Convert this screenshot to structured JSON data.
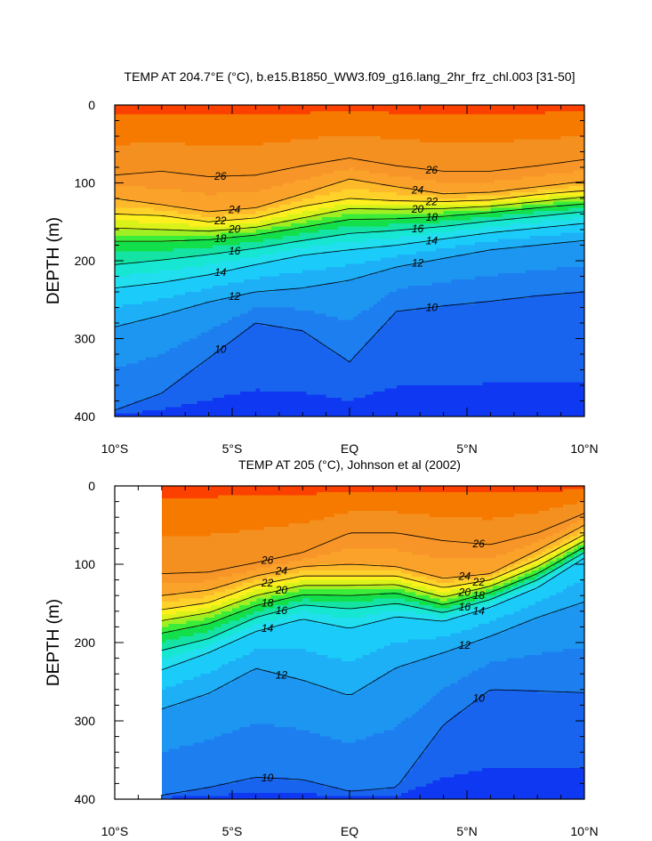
{
  "chart_data": [
    {
      "type": "contour",
      "title": "TEMP AT 204.7°E (°C), b.e15.B1850_WW3.f09_g16.lang_2hr_frz_chl.003 [31-50]",
      "xlabel": "",
      "ylabel": "DEPTH (m)",
      "x_ticks": [
        "10°S",
        "5°S",
        "EQ",
        "5°N",
        "10°N"
      ],
      "y_ticks": [
        "0",
        "100",
        "200",
        "300",
        "400"
      ],
      "xlim": [
        -10,
        10
      ],
      "ylim": [
        0,
        400
      ],
      "y_inverted": true,
      "contour_labels": [
        "26",
        "26",
        "24",
        "24",
        "22",
        "22",
        "20",
        "20",
        "18",
        "18",
        "16",
        "16",
        "14",
        "14",
        "12",
        "12",
        "10",
        "10",
        "24",
        "22",
        "20",
        "18",
        "16",
        "14",
        "12",
        "10",
        "10",
        "26"
      ],
      "isotherm_depths": {
        "x": [
          -10,
          -8,
          -6,
          -4,
          -2,
          0,
          2,
          4,
          6,
          8,
          10
        ],
        "26": [
          90,
          85,
          92,
          90,
          78,
          68,
          78,
          85,
          85,
          78,
          70
        ],
        "24": [
          120,
          128,
          137,
          132,
          114,
          95,
          105,
          114,
          112,
          105,
          98
        ],
        "22": [
          140,
          142,
          150,
          145,
          130,
          120,
          123,
          124,
          122,
          115,
          110
        ],
        "20": [
          158,
          160,
          162,
          157,
          145,
          133,
          134,
          133,
          130,
          124,
          118
        ],
        "18": [
          175,
          175,
          173,
          167,
          157,
          147,
          146,
          143,
          138,
          132,
          127
        ],
        "16": [
          205,
          199,
          192,
          184,
          174,
          165,
          161,
          156,
          149,
          143,
          137
        ],
        "14": [
          235,
          228,
          218,
          205,
          193,
          186,
          180,
          172,
          164,
          158,
          152
        ],
        "12": [
          285,
          270,
          253,
          240,
          235,
          225,
          208,
          197,
          186,
          180,
          174
        ],
        "10": [
          392,
          370,
          325,
          280,
          290,
          330,
          265,
          258,
          252,
          245,
          240
        ]
      }
    },
    {
      "type": "contour",
      "title": "TEMP AT 205 (°C), Johnson et al (2002)",
      "xlabel": "",
      "ylabel": "DEPTH (m)",
      "x_ticks": [
        "10°S",
        "5°S",
        "EQ",
        "5°N",
        "10°N"
      ],
      "y_ticks": [
        "0",
        "100",
        "200",
        "300",
        "400"
      ],
      "xlim": [
        -10,
        10
      ],
      "ylim": [
        0,
        400
      ],
      "y_inverted": true,
      "data_x_range": [
        -8,
        10
      ],
      "contour_labels": [
        "26",
        "26",
        "26",
        "24",
        "24",
        "22",
        "22",
        "20",
        "20",
        "18",
        "18",
        "16",
        "16",
        "14",
        "14",
        "14",
        "12",
        "12",
        "12",
        "10",
        "10",
        "10",
        "24",
        "22",
        "20",
        "18",
        "16"
      ],
      "isotherm_depths": {
        "x": [
          -8,
          -6,
          -4,
          -2,
          0,
          2,
          4,
          6,
          8,
          10
        ],
        "26": [
          112,
          110,
          98,
          85,
          60,
          60,
          70,
          75,
          60,
          35
        ],
        "24": [
          140,
          133,
          115,
          103,
          100,
          103,
          118,
          112,
          82,
          50
        ],
        "22": [
          158,
          149,
          127,
          115,
          115,
          115,
          130,
          120,
          94,
          62
        ],
        "20": [
          172,
          162,
          140,
          127,
          127,
          126,
          142,
          128,
          103,
          70
        ],
        "18": [
          188,
          176,
          153,
          139,
          140,
          137,
          152,
          136,
          112,
          78
        ],
        "16": [
          210,
          195,
          168,
          152,
          157,
          150,
          162,
          145,
          120,
          85
        ],
        "14": [
          235,
          213,
          186,
          170,
          182,
          167,
          173,
          155,
          130,
          92
        ],
        "12": [
          285,
          265,
          233,
          248,
          268,
          232,
          213,
          192,
          168,
          148
        ],
        "10": [
          395,
          385,
          372,
          375,
          390,
          385,
          305,
          260,
          262,
          264
        ]
      }
    }
  ]
}
